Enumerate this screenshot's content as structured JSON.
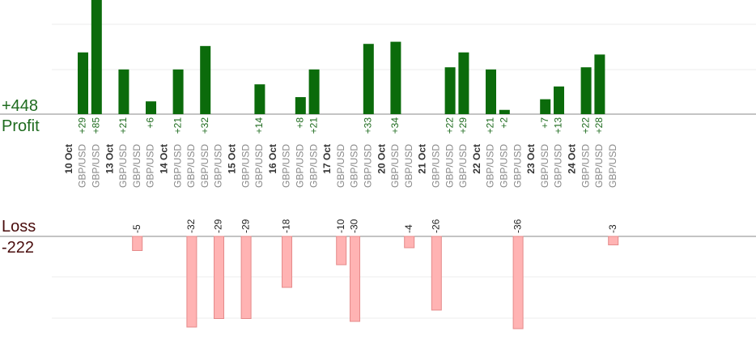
{
  "colors": {
    "profit_bar": "#0b6b0b",
    "profit_text": "#1e6b1e",
    "loss_bar": "#ffb3b3",
    "loss_bar_stroke": "#e58a8a",
    "loss_text": "#4a0d0d",
    "date_text": "#333333",
    "pair_text": "#888888"
  },
  "summary": {
    "profit_total": "+448",
    "profit_label": "Profit",
    "loss_label": "Loss",
    "loss_total": "-222"
  },
  "chart_data": {
    "type": "bar",
    "grid": true,
    "profit_axis_visible_max": 50,
    "loss_axis_visible_min": -34,
    "days": [
      {
        "date": "10 Oct",
        "trades": [
          {
            "pair": "GBP/USD",
            "value": 29
          },
          {
            "pair": "GBP/USD",
            "value": 85
          }
        ]
      },
      {
        "date": "13 Oct",
        "trades": [
          {
            "pair": "GBP/USD",
            "value": 21
          },
          {
            "pair": "GBP/USD",
            "value": -5
          },
          {
            "pair": "GBP/USD",
            "value": 6
          }
        ]
      },
      {
        "date": "14 Oct",
        "trades": [
          {
            "pair": "GBP/USD",
            "value": 21
          },
          {
            "pair": "GBP/USD",
            "value": -32
          },
          {
            "pair": "GBP/USD",
            "value": 32
          },
          {
            "pair": "GBP/USD",
            "value": -29
          }
        ]
      },
      {
        "date": "15 Oct",
        "trades": [
          {
            "pair": "GBP/USD",
            "value": -29
          },
          {
            "pair": "GBP/USD",
            "value": 14
          }
        ]
      },
      {
        "date": "16 Oct",
        "trades": [
          {
            "pair": "GBP/USD",
            "value": -18
          },
          {
            "pair": "GBP/USD",
            "value": 8
          },
          {
            "pair": "GBP/USD",
            "value": 21
          }
        ]
      },
      {
        "date": "17 Oct",
        "trades": [
          {
            "pair": "GBP/USD",
            "value": -10
          },
          {
            "pair": "GBP/USD",
            "value": -30
          },
          {
            "pair": "GBP/USD",
            "value": 33
          }
        ]
      },
      {
        "date": "20 Oct",
        "trades": [
          {
            "pair": "GBP/USD",
            "value": 34
          },
          {
            "pair": "GBP/USD",
            "value": -4
          }
        ]
      },
      {
        "date": "21 Oct",
        "trades": [
          {
            "pair": "GBP/USD",
            "value": -26
          },
          {
            "pair": "GBP/USD",
            "value": 22
          },
          {
            "pair": "GBP/USD",
            "value": 29
          }
        ]
      },
      {
        "date": "22 Oct",
        "trades": [
          {
            "pair": "GBP/USD",
            "value": 21
          },
          {
            "pair": "GBP/USD",
            "value": 2
          },
          {
            "pair": "GBP/USD",
            "value": -36
          }
        ]
      },
      {
        "date": "23 Oct",
        "trades": [
          {
            "pair": "GBP/USD",
            "value": 7
          },
          {
            "pair": "GBP/USD",
            "value": 13
          }
        ]
      },
      {
        "date": "24 Oct",
        "trades": [
          {
            "pair": "GBP/USD",
            "value": 22
          },
          {
            "pair": "GBP/USD",
            "value": 28
          },
          {
            "pair": "GBP/USD",
            "value": -3
          }
        ]
      }
    ]
  }
}
